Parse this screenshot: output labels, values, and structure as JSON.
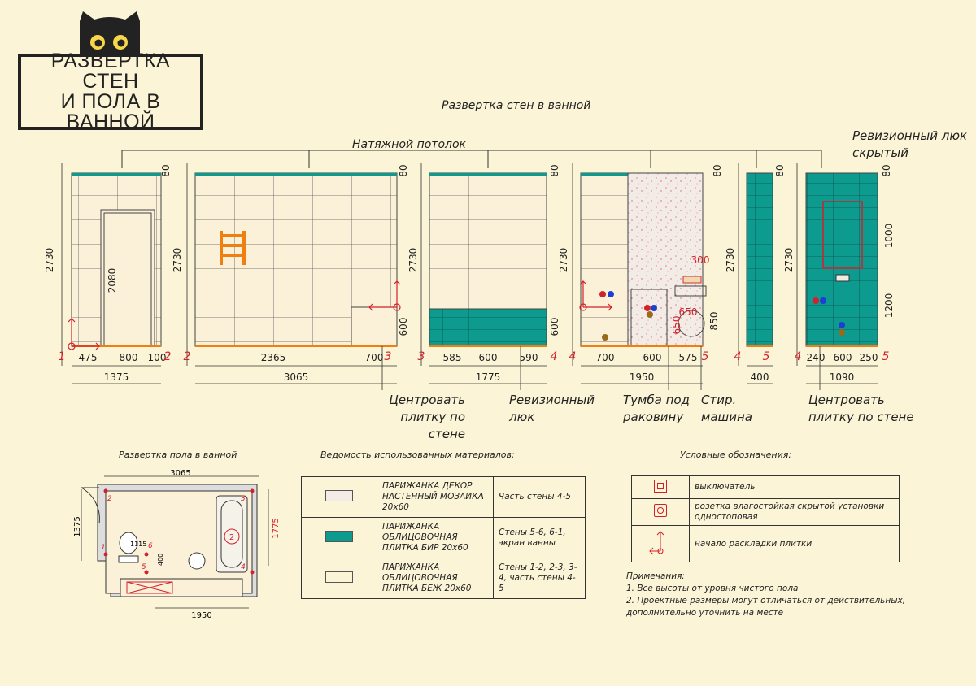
{
  "title": {
    "line1": "РАЗВЕРТКА СТЕН",
    "line2": "И ПОЛА В",
    "line3": "ВАННОЙ"
  },
  "walls_header": "Развертка стен в ванной",
  "ceiling_label": "Натяжной потолок",
  "hatch_label": {
    "line1": "Ревизионный люк",
    "line2": "скрытый"
  },
  "notes_below": {
    "center_tile_1": {
      "line1": "Центровать",
      "line2": "плитку по стене"
    },
    "revision": {
      "line1": "Ревизионный",
      "line2": "люк"
    },
    "cabinet": {
      "line1": "Тумба под",
      "line2": "раковину"
    },
    "washer": {
      "line1": "Стир.",
      "line2": "машина"
    },
    "center_tile_2": {
      "line1": "Центровать",
      "line2": "плитку по стене"
    }
  },
  "walls": {
    "heights": [
      "2730",
      "2730",
      "2730",
      "2730",
      "2730",
      "2730"
    ],
    "ceiling_gap": "80",
    "door_height": "2080",
    "screen_height": "600",
    "dims": {
      "w1": [
        "475",
        "800",
        "100",
        "1375"
      ],
      "w2": [
        "2365",
        "700",
        "3065"
      ],
      "w3": [
        "585",
        "600",
        "590",
        "1775",
        "600"
      ],
      "w4": [
        "700",
        "600",
        "575",
        "1950",
        "300",
        "650",
        "650",
        "850"
      ],
      "w5": [
        "400"
      ],
      "w6": [
        "240",
        "600",
        "250",
        "1090",
        "1000",
        "1200"
      ]
    },
    "corners": [
      "1",
      "2",
      "2",
      "3",
      "3",
      "4",
      "4",
      "5",
      "4",
      "5",
      "4",
      "5"
    ]
  },
  "floor": {
    "header": "Развертка пола в ванной",
    "dims": [
      "3065",
      "1375",
      "1775",
      "1950",
      "1115",
      "400"
    ],
    "corners": [
      "1",
      "2",
      "3",
      "4",
      "5",
      "6"
    ],
    "bath_mark": "2"
  },
  "materials": {
    "header": "Ведомость использованных материалов:",
    "rows": [
      {
        "swatch": "#f3ece6",
        "name": "ПАРИЖАНКА ДЕКОР НАСТЕННЫЙ МОЗАИКА 20х60",
        "where": "Часть стены 4-5"
      },
      {
        "swatch": "#0e9b8f",
        "name": "ПАРИЖАНКА ОБЛИЦОВОЧНАЯ ПЛИТКА БИР 20х60",
        "where": "Стены 5-6, 6-1, экран ванны"
      },
      {
        "swatch": "#fbf4d6",
        "name": "ПАРИЖАНКА ОБЛИЦОВОЧНАЯ ПЛИТКА БЕЖ 20х60",
        "where": "Стены 1-2, 2-3, 3-4, часть стены 4-5"
      }
    ]
  },
  "legend": {
    "header": "Условные обозначения:",
    "rows": [
      "выключатель",
      "розетка влагостойкая скрытой установки одностоповая",
      "начало раскладки плитки"
    ]
  },
  "remarks": {
    "header": "Примечания:",
    "items": [
      "1. Все высоты от уровня чистого пола",
      "2. Проектные размеры могут отличаться от действительных,",
      "дополнительно уточнить на месте"
    ]
  },
  "colors": {
    "teal": "#0e9b8f",
    "red": "#d4202a",
    "orange": "#f07f12",
    "bg": "#fbf4d6"
  }
}
